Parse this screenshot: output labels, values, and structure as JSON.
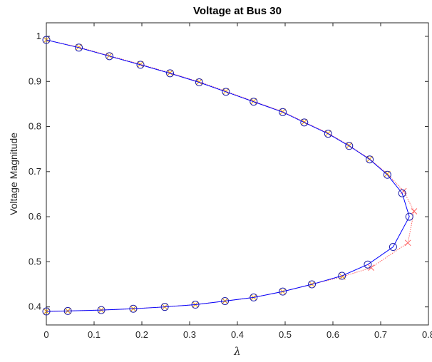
{
  "chart_data": {
    "type": "line",
    "title": "Voltage at Bus 30",
    "xlabel": "λ",
    "ylabel": "Voltage Magnitude",
    "xlim": [
      0,
      0.8
    ],
    "ylim": [
      0.36,
      1.03
    ],
    "x_ticks": [
      "0",
      "0.1",
      "0.2",
      "0.3",
      "0.4",
      "0.5",
      "0.6",
      "0.7",
      "0.8"
    ],
    "y_ticks": [
      "0.4",
      "0.5",
      "0.6",
      "0.7",
      "0.8",
      "0.9",
      "1"
    ],
    "grid": false,
    "legend": "none",
    "colors": {
      "corrected": "#0000ff",
      "marker": "#1f1faa",
      "predicted": "#ff6060",
      "predicted_alt": "#f4a000"
    },
    "series": [
      {
        "line": "solid",
        "marker": "circle",
        "x": [
          0.0,
          0.068,
          0.132,
          0.197,
          0.259,
          0.32,
          0.376,
          0.434,
          0.495,
          0.54,
          0.59,
          0.634,
          0.677,
          0.714,
          0.745,
          0.76,
          0.726,
          0.673,
          0.619,
          0.556,
          0.495,
          0.434,
          0.374,
          0.312,
          0.248,
          0.182,
          0.115,
          0.045,
          0.0
        ],
        "y": [
          0.992,
          0.975,
          0.956,
          0.937,
          0.918,
          0.898,
          0.877,
          0.855,
          0.832,
          0.809,
          0.784,
          0.757,
          0.727,
          0.693,
          0.652,
          0.6,
          0.533,
          0.494,
          0.469,
          0.45,
          0.434,
          0.421,
          0.413,
          0.405,
          0.4,
          0.396,
          0.393,
          0.391,
          0.39
        ]
      },
      {
        "line": "dotted",
        "marker": "x",
        "x": [
          0.0,
          0.068,
          0.132,
          0.197,
          0.259,
          0.32,
          0.376,
          0.434,
          0.495,
          0.54,
          0.59,
          0.634,
          0.677,
          0.714,
          0.748,
          0.77,
          0.757,
          0.68,
          0.62,
          0.556,
          0.495,
          0.434,
          0.374,
          0.312,
          0.248,
          0.182,
          0.115,
          0.045,
          0.0
        ],
        "y": [
          0.992,
          0.976,
          0.957,
          0.938,
          0.919,
          0.899,
          0.878,
          0.856,
          0.833,
          0.81,
          0.785,
          0.758,
          0.728,
          0.695,
          0.657,
          0.612,
          0.542,
          0.487,
          0.467,
          0.45,
          0.434,
          0.421,
          0.413,
          0.405,
          0.4,
          0.396,
          0.393,
          0.391,
          0.39
        ]
      }
    ]
  }
}
